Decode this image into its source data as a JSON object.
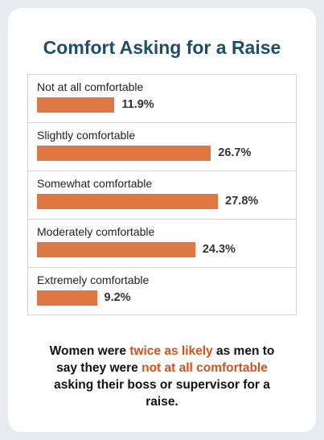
{
  "chart_data": {
    "type": "bar",
    "orientation": "horizontal",
    "title": "Comfort Asking for a Raise",
    "categories": [
      "Not at all comfortable",
      "Slightly comfortable",
      "Somewhat comfortable",
      "Moderately comfortable",
      "Extremely comfortable"
    ],
    "values": [
      11.9,
      26.7,
      27.8,
      24.3,
      9.2
    ],
    "value_labels": [
      "11.9%",
      "26.7%",
      "27.8%",
      "24.3%",
      "9.2%"
    ],
    "bar_color": "#e07843",
    "grid": false
  },
  "caption": {
    "p1": "Women were ",
    "h1": "twice as likely",
    "p2": " as men to say they were ",
    "h2": "not at all comfortable",
    "p3": " asking their boss or supervisor for a raise."
  },
  "colors": {
    "title": "#1f4e66",
    "highlight": "#d1531c",
    "background": "#e5ebef"
  }
}
